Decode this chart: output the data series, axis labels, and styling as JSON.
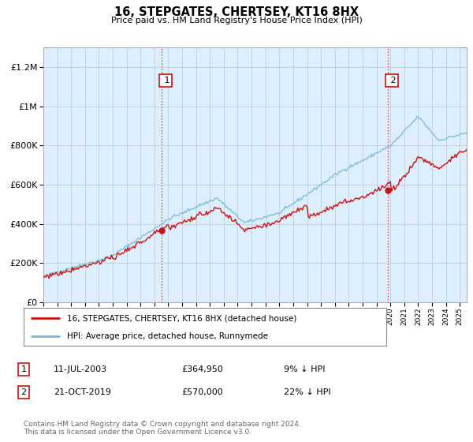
{
  "title": "16, STEPGATES, CHERTSEY, KT16 8HX",
  "subtitle": "Price paid vs. HM Land Registry's House Price Index (HPI)",
  "ylim": [
    0,
    1300000
  ],
  "yticks": [
    0,
    200000,
    400000,
    600000,
    800000,
    1000000,
    1200000
  ],
  "ytick_labels": [
    "£0",
    "£200K",
    "£400K",
    "£600K",
    "£800K",
    "£1M",
    "£1.2M"
  ],
  "x_start_year": 1995.0,
  "x_end_year": 2025.5,
  "purchase1": {
    "year": 2003.53,
    "price": 364950,
    "label": "1"
  },
  "purchase2": {
    "year": 2019.8,
    "price": 570000,
    "label": "2"
  },
  "hpi_color": "#7ab8d8",
  "price_color": "#cc1111",
  "marker_color": "#cc1111",
  "vline_color": "#cc1111",
  "plot_bg_color": "#ddeeff",
  "legend_label_price": "16, STEPGATES, CHERTSEY, KT16 8HX (detached house)",
  "legend_label_hpi": "HPI: Average price, detached house, Runnymede",
  "table_entries": [
    {
      "num": "1",
      "date": "11-JUL-2003",
      "price": "£364,950",
      "pct": "9% ↓ HPI"
    },
    {
      "num": "2",
      "date": "21-OCT-2019",
      "price": "£570,000",
      "pct": "22% ↓ HPI"
    }
  ],
  "footer": "Contains HM Land Registry data © Crown copyright and database right 2024.\nThis data is licensed under the Open Government Licence v3.0.",
  "fig_bg_color": "#ffffff"
}
